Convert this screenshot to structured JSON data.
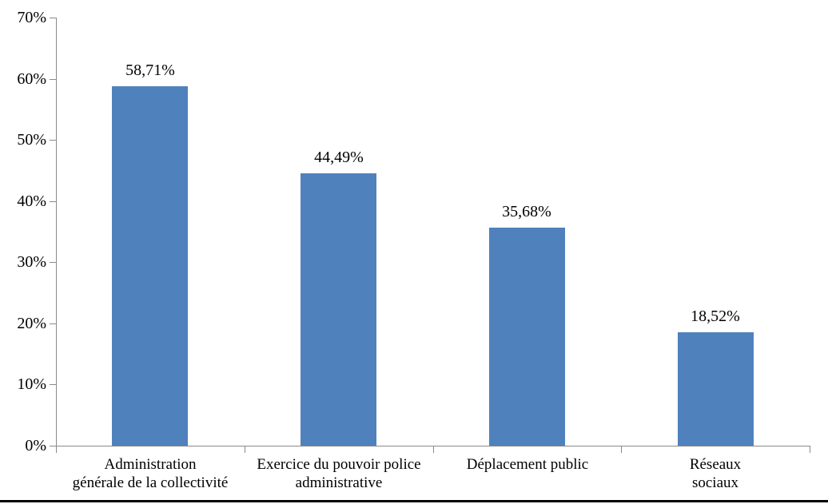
{
  "chart_data": {
    "type": "bar",
    "categories": [
      "Administration\ngénérale de la collectivité",
      "Exercice du pouvoir police\nadministrative",
      "Déplacement public",
      "Réseaux\nsociaux"
    ],
    "values": [
      58.71,
      44.49,
      35.68,
      18.52
    ],
    "value_labels": [
      "58,71%",
      "44,49%",
      "35,68%",
      "18,52%"
    ],
    "title": "",
    "xlabel": "",
    "ylabel": "",
    "ylim": [
      0,
      70
    ],
    "ytick_step": 10,
    "ytick_labels": [
      "0%",
      "10%",
      "20%",
      "30%",
      "40%",
      "50%",
      "60%",
      "70%"
    ],
    "grid": false,
    "legend": false,
    "colors": {
      "bar": "#4F81BD",
      "axis": "#8a8a8a",
      "text": "#000000",
      "bottom_border": "#000000",
      "background": "#ffffff"
    }
  }
}
